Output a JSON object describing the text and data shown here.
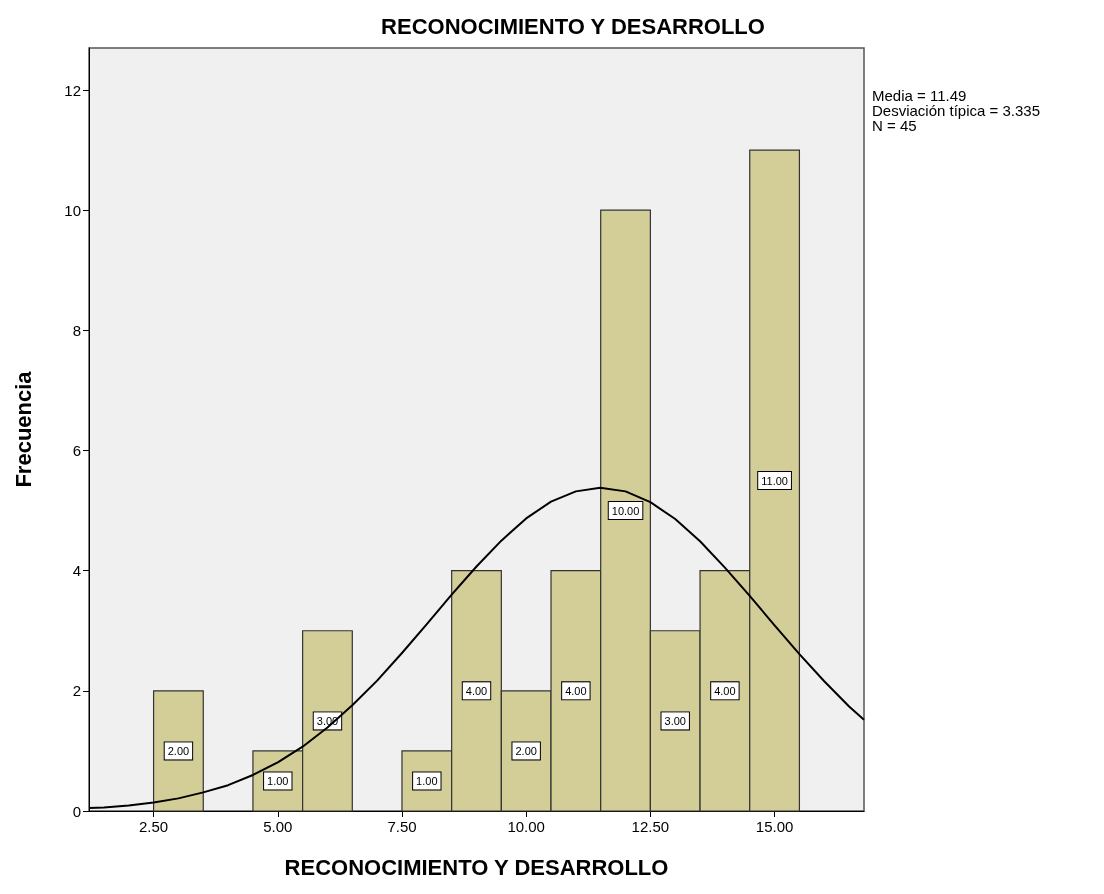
{
  "chart_data": {
    "type": "histogram",
    "title": "RECONOCIMIENTO Y DESARROLLO",
    "xlabel": "RECONOCIMIENTO Y DESARROLLO",
    "ylabel": "Frecuencia",
    "annotations": [
      "Media = 11.49",
      "Desviación típica = 3.335",
      "N = 45"
    ],
    "series": [
      {
        "color": "#d3ce97",
        "bins": [
          2.5,
          3.5,
          4.5,
          5.5,
          6.5,
          7.5,
          8.5,
          9.5,
          10.5,
          11.5,
          12.5,
          13.5,
          14.5,
          15.5
        ],
        "values": [
          2,
          0,
          1,
          3,
          0,
          1,
          4,
          2,
          4,
          10,
          3,
          4,
          11
        ],
        "value_labels": [
          "2.00",
          null,
          "1.00",
          "3.00",
          null,
          "1.00",
          "4.00",
          "2.00",
          "4.00",
          "10.00",
          "3.00",
          "4.00",
          "11.00"
        ]
      },
      {
        "type": "line",
        "color": "#000000",
        "x": [
          1.2,
          1.5,
          2,
          2.5,
          3,
          3.5,
          4,
          4.5,
          5,
          5.5,
          6,
          6.5,
          7,
          7.5,
          8,
          8.5,
          9,
          9.5,
          10,
          10.5,
          11,
          11.49,
          12,
          12.5,
          13,
          13.5,
          14,
          14.5,
          15,
          15.5,
          16,
          16.5,
          16.8
        ],
        "values": [
          0.05,
          0.06,
          0.09,
          0.14,
          0.21,
          0.31,
          0.43,
          0.6,
          0.81,
          1.07,
          1.39,
          1.76,
          2.17,
          2.63,
          3.11,
          3.6,
          4.07,
          4.5,
          4.87,
          5.15,
          5.32,
          5.38,
          5.32,
          5.14,
          4.86,
          4.49,
          4.05,
          3.58,
          3.09,
          2.61,
          2.16,
          1.74,
          1.52
        ]
      }
    ],
    "xlim": [
      1.2,
      16.8
    ],
    "xticks": [
      {
        "value": 2.5,
        "label": "2.50"
      },
      {
        "value": 5,
        "label": "5.00"
      },
      {
        "value": 7.5,
        "label": "7.50"
      },
      {
        "value": 10,
        "label": "10.00"
      },
      {
        "value": 12.5,
        "label": "12.50"
      },
      {
        "value": 15,
        "label": "15.00"
      }
    ],
    "ylim": [
      0,
      12.7
    ],
    "yticks": [
      0,
      2,
      4,
      6,
      8,
      10,
      12
    ],
    "grid": false,
    "marker": "none",
    "line_style": "solid"
  }
}
